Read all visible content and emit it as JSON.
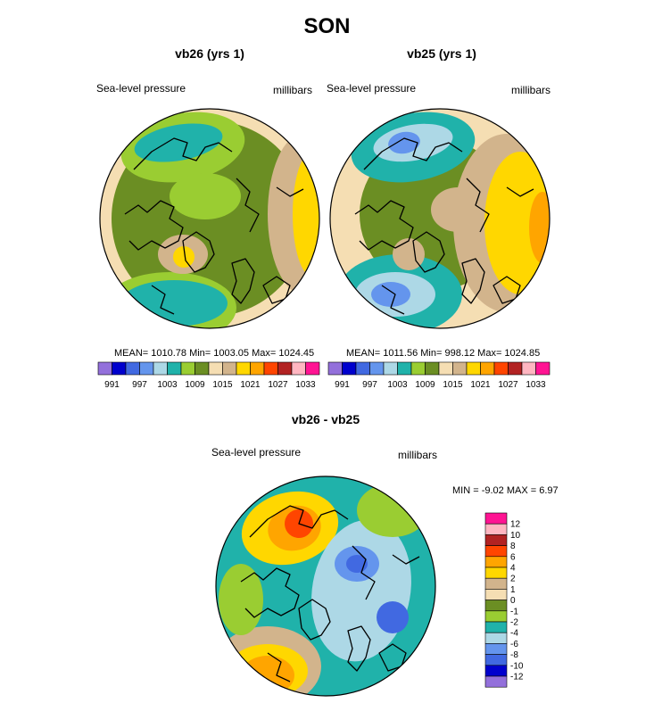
{
  "main_title": "SON",
  "colors": {
    "palette": [
      "#9370DB",
      "#0000CD",
      "#4169E1",
      "#6495ED",
      "#ADD8E6",
      "#20B2AA",
      "#9ACD32",
      "#6B8E23",
      "#F5DEB3",
      "#D2B48C",
      "#FFD700",
      "#FFA500",
      "#FF4500",
      "#B22222",
      "#FFB6C1",
      "#FF1493"
    ],
    "diff_palette": [
      "#9370DB",
      "#0000CD",
      "#4169E1",
      "#6495ED",
      "#ADD8E6",
      "#20B2AA",
      "#9ACD32",
      "#6B8E23",
      "#F5DEB3",
      "#D2B48C",
      "#FFD700",
      "#FFA500",
      "#FF4500",
      "#B22222",
      "#FFB6C1",
      "#FF1493"
    ],
    "coast": "#000000",
    "outline": "#000000"
  },
  "chart_data": [
    {
      "type": "heatmap",
      "title": "vb26 (yrs 1)",
      "left_label": "Sea-level pressure",
      "right_label": "millibars",
      "stats": "MEAN= 1010.78  Min= 1003.05  Max= 1024.45",
      "mean": 1010.78,
      "min": 1003.05,
      "max": 1024.45,
      "levels": [
        991,
        994,
        997,
        1000,
        1003,
        1006,
        1009,
        1012,
        1015,
        1018,
        1021,
        1024,
        1027,
        1030,
        1033
      ],
      "tick_labels": [
        "991",
        "997",
        "1003",
        "1009",
        "1015",
        "1021",
        "1027",
        "1033"
      ],
      "projection": "north polar stereographic"
    },
    {
      "type": "heatmap",
      "title": "vb25 (yrs 1)",
      "left_label": "Sea-level pressure",
      "right_label": "millibars",
      "stats": "MEAN= 1011.56  Min= 998.12  Max= 1024.85",
      "mean": 1011.56,
      "min": 998.12,
      "max": 1024.85,
      "levels": [
        991,
        994,
        997,
        1000,
        1003,
        1006,
        1009,
        1012,
        1015,
        1018,
        1021,
        1024,
        1027,
        1030,
        1033
      ],
      "tick_labels": [
        "991",
        "997",
        "1003",
        "1009",
        "1015",
        "1021",
        "1027",
        "1033"
      ],
      "projection": "north polar stereographic"
    },
    {
      "type": "heatmap",
      "title": "vb26 - vb25",
      "left_label": "Sea-level pressure",
      "right_label": "millibars",
      "stats": "MIN =  -9.02 MAX =   6.97",
      "min": -9.02,
      "max": 6.97,
      "levels": [
        12,
        10,
        8,
        6,
        4,
        2,
        1,
        0,
        -1,
        -2,
        -4,
        -6,
        -8,
        -10,
        -12
      ],
      "tick_labels": [
        "12",
        "10",
        "8",
        "6",
        "4",
        "2",
        "1",
        "0",
        "-1",
        "-2",
        "-4",
        "-6",
        "-8",
        "-10",
        "-12"
      ],
      "projection": "north polar stereographic"
    }
  ]
}
